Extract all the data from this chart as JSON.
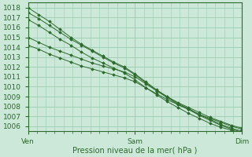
{
  "title": "",
  "xlabel": "Pression niveau de la mer( hPa )",
  "ylabel": "",
  "xlim": [
    0,
    48
  ],
  "ylim": [
    1005.5,
    1018.5
  ],
  "yticks": [
    1006,
    1007,
    1008,
    1009,
    1010,
    1011,
    1012,
    1013,
    1014,
    1015,
    1016,
    1017,
    1018
  ],
  "xtick_positions": [
    0,
    24,
    48
  ],
  "xtick_labels": [
    "Ven",
    "Sam",
    "Dim"
  ],
  "bg_color": "#cce8d8",
  "grid_color": "#99ccb0",
  "line_color": "#2d6a2d",
  "lines": [
    [
      1018.0,
      1017.3,
      1016.6,
      1015.8,
      1015.0,
      1014.3,
      1013.7,
      1013.1,
      1012.5,
      1012.0,
      1011.3,
      1010.5,
      1009.7,
      1009.0,
      1008.3,
      1007.8,
      1007.2,
      1006.7,
      1006.2,
      1005.8,
      1005.5
    ],
    [
      1017.5,
      1016.9,
      1016.2,
      1015.5,
      1014.8,
      1014.2,
      1013.6,
      1013.0,
      1012.4,
      1011.9,
      1011.2,
      1010.4,
      1009.6,
      1008.9,
      1008.2,
      1007.7,
      1007.1,
      1006.6,
      1006.1,
      1005.7,
      1005.4
    ],
    [
      1016.8,
      1016.2,
      1015.5,
      1014.8,
      1014.2,
      1013.5,
      1012.9,
      1012.4,
      1011.9,
      1011.4,
      1010.7,
      1009.9,
      1009.2,
      1008.5,
      1007.9,
      1007.3,
      1006.8,
      1006.3,
      1005.9,
      1005.6,
      1005.3
    ],
    [
      1015.0,
      1014.5,
      1014.0,
      1013.6,
      1013.2,
      1012.8,
      1012.4,
      1012.1,
      1011.8,
      1011.5,
      1011.0,
      1010.3,
      1009.6,
      1009.0,
      1008.4,
      1007.9,
      1007.4,
      1006.9,
      1006.5,
      1006.1,
      1005.8
    ],
    [
      1014.2,
      1013.8,
      1013.3,
      1012.9,
      1012.5,
      1012.1,
      1011.8,
      1011.5,
      1011.2,
      1010.9,
      1010.5,
      1009.9,
      1009.3,
      1008.7,
      1008.2,
      1007.7,
      1007.2,
      1006.8,
      1006.4,
      1006.0,
      1005.7
    ]
  ]
}
